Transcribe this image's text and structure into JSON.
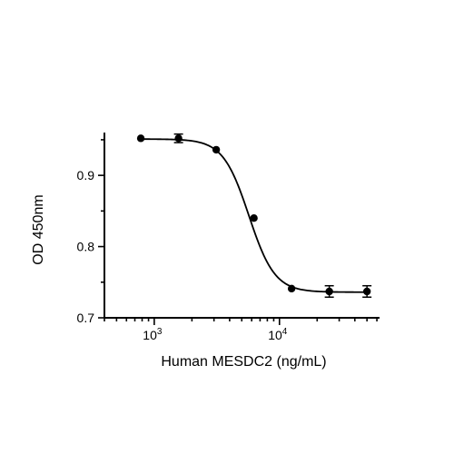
{
  "chart_data": {
    "type": "scatter",
    "title": "",
    "xlabel": "Human MESDC2 (ng/mL)",
    "ylabel": "OD 450nm",
    "xscale": "log",
    "xlim": [
      400,
      63000
    ],
    "ylim": [
      0.7,
      0.955
    ],
    "yticks": [
      0.7,
      0.8,
      0.9
    ],
    "ytick_labels": [
      "0.7",
      "0.8",
      "0.9"
    ],
    "xticks_major": [
      1000,
      10000
    ],
    "xtick_base": "10",
    "xtick_exponents": [
      "3",
      "4"
    ],
    "grid": false,
    "legend": "none",
    "series": [
      {
        "x": [
          781,
          1563,
          3125,
          6250,
          12500,
          25000,
          50000
        ],
        "y": [
          0.952,
          0.952,
          0.936,
          0.84,
          0.741,
          0.737,
          0.737
        ],
        "error": [
          0,
          0.006,
          0,
          0,
          0,
          0.008,
          0.008
        ]
      }
    ],
    "fit_curve": {
      "model": "4PL",
      "top": 0.951,
      "bottom": 0.736,
      "ec50": 5700,
      "hill": 4.2
    }
  }
}
